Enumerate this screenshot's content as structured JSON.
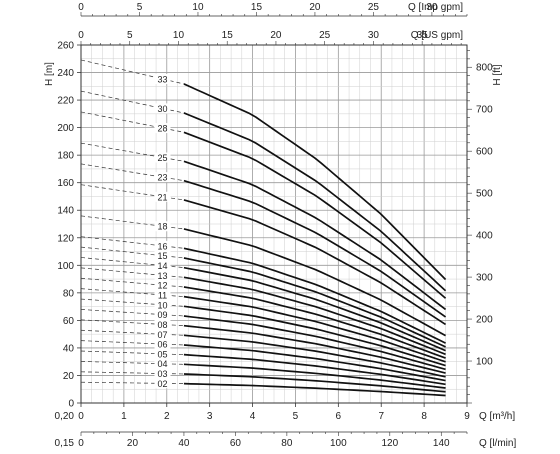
{
  "chart_data": {
    "type": "line",
    "axes": {
      "flow_m3h": {
        "label": "Q [m³/h]",
        "min": 0,
        "max": 9,
        "ticks": [
          "0",
          "1",
          "2",
          "3",
          "4",
          "5",
          "6",
          "7",
          "8",
          "9"
        ]
      },
      "flow_lmin": {
        "label": "Q [l/min]",
        "min": 0,
        "max": 150,
        "ticks": [
          "0",
          "20",
          "40",
          "60",
          "80",
          "100",
          "120",
          "140"
        ]
      },
      "flow_usgpm": {
        "label": "Q [US gpm]",
        "min": 0,
        "max": 39.6,
        "ticks": [
          "0",
          "5",
          "10",
          "15",
          "20",
          "25",
          "30",
          "35"
        ]
      },
      "flow_impgpm": {
        "label": "Q [Imp gpm]",
        "min": 0,
        "max": 33,
        "ticks": [
          "0",
          "5",
          "10",
          "15",
          "20",
          "25",
          "30"
        ]
      },
      "head_m": {
        "label": "H [m]",
        "min": 0,
        "max": 260,
        "ticks": [
          "0",
          "20",
          "40",
          "60",
          "80",
          "100",
          "120",
          "140",
          "160",
          "180",
          "200",
          "220",
          "240",
          "260"
        ]
      },
      "head_ft": {
        "label": "H [ft]",
        "min": 0,
        "max": 853,
        "ticks": [
          "100",
          "200",
          "300",
          "400",
          "500",
          "600",
          "700",
          "800"
        ]
      }
    },
    "corner_labels": [
      "0,20",
      "0,15"
    ],
    "grid": true,
    "curve_shape": {
      "shutoff_head_per_stage_m": 7.55,
      "dashed_range_m3h": [
        0,
        2.4
      ],
      "solid_range_m3h": [
        2.4,
        8.5
      ],
      "head_fraction_at_m3h": [
        [
          0,
          1.0
        ],
        [
          2.4,
          0.93
        ],
        [
          4,
          0.84
        ],
        [
          5.5,
          0.71
        ],
        [
          7,
          0.55
        ],
        [
          8.5,
          0.36
        ]
      ]
    },
    "series": [
      {
        "name": "02",
        "stages": 2
      },
      {
        "name": "03",
        "stages": 3
      },
      {
        "name": "04",
        "stages": 4
      },
      {
        "name": "05",
        "stages": 5
      },
      {
        "name": "06",
        "stages": 6
      },
      {
        "name": "07",
        "stages": 7
      },
      {
        "name": "08",
        "stages": 8
      },
      {
        "name": "09",
        "stages": 9
      },
      {
        "name": "10",
        "stages": 10
      },
      {
        "name": "11",
        "stages": 11
      },
      {
        "name": "12",
        "stages": 12
      },
      {
        "name": "13",
        "stages": 13
      },
      {
        "name": "14",
        "stages": 14
      },
      {
        "name": "15",
        "stages": 15
      },
      {
        "name": "16",
        "stages": 16
      },
      {
        "name": "18",
        "stages": 18
      },
      {
        "name": "21",
        "stages": 21
      },
      {
        "name": "23",
        "stages": 23
      },
      {
        "name": "25",
        "stages": 25
      },
      {
        "name": "28",
        "stages": 28
      },
      {
        "name": "30",
        "stages": 30
      },
      {
        "name": "33",
        "stages": 33
      }
    ]
  }
}
